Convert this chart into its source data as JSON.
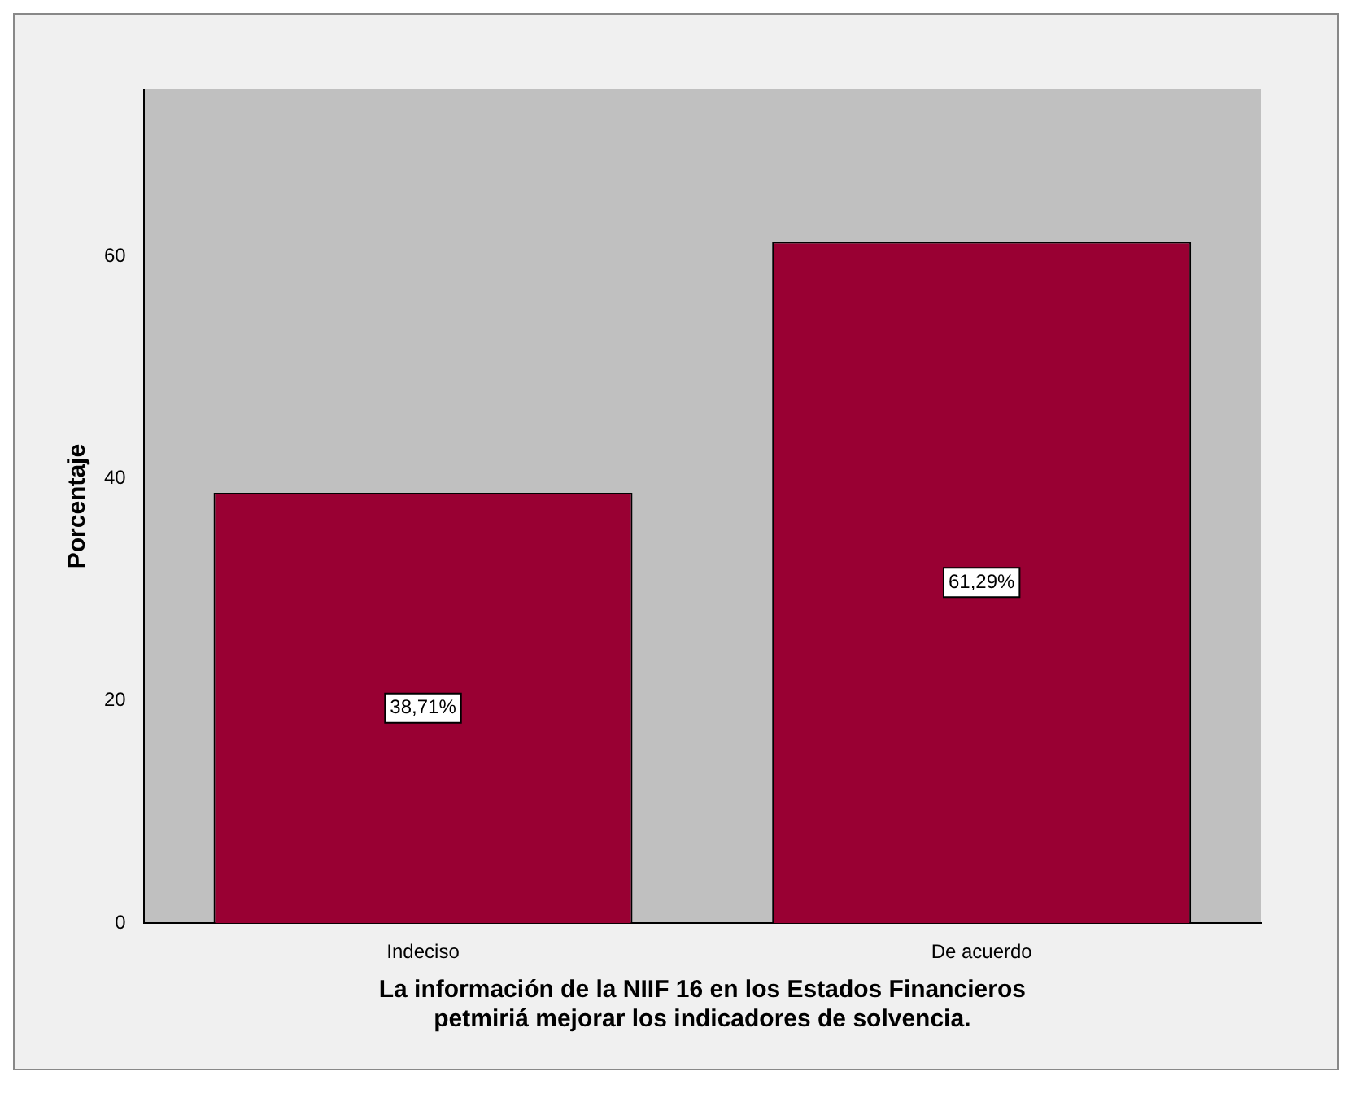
{
  "chart_data": {
    "type": "bar",
    "xlabel": "La información de la NIIF 16 en los Estados Financieros\npetmiriá mejorar los indicadores de solvencia.",
    "ylabel": "Porcentaje",
    "categories": [
      "Indeciso",
      "De acuerdo"
    ],
    "values": [
      38.71,
      61.29
    ],
    "value_labels": [
      "38,71%",
      "61,29%"
    ],
    "color": "#990033",
    "ylim": [
      0,
      75
    ],
    "yticks": [
      0,
      20,
      40,
      60
    ],
    "grid": false,
    "legend": false
  }
}
